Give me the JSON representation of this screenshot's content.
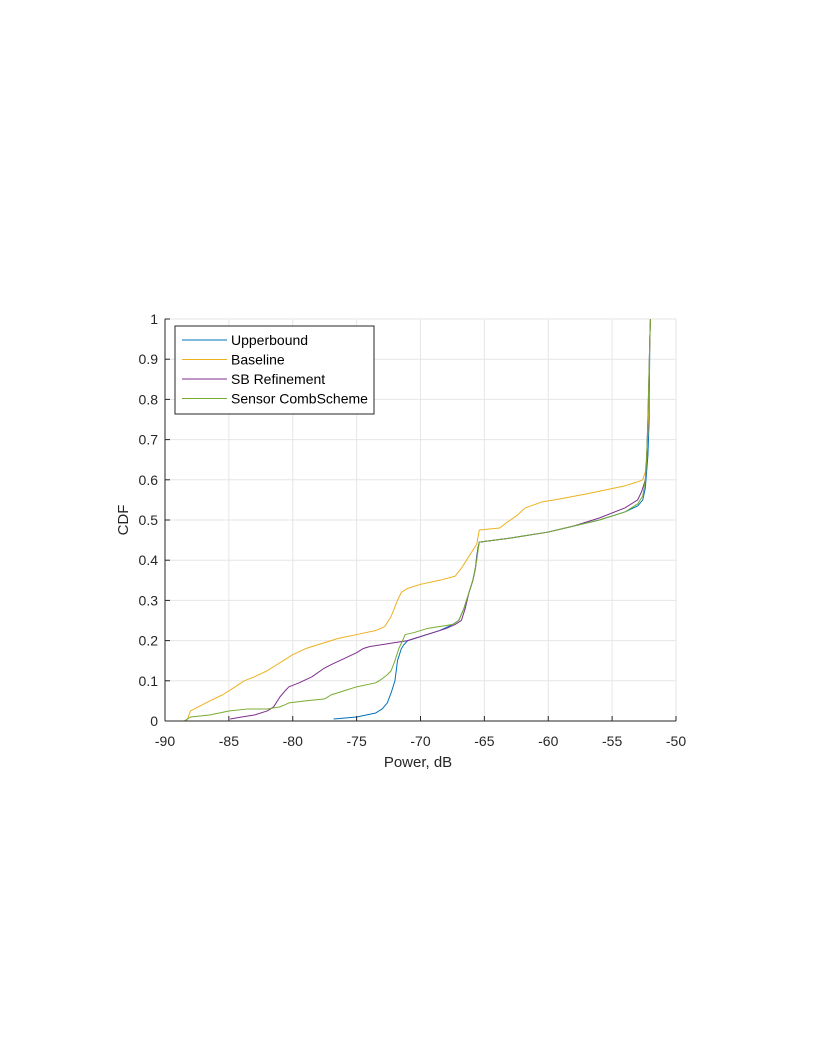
{
  "chart_data": {
    "type": "line",
    "title": "",
    "xlabel": "Power, dB",
    "ylabel": "CDF",
    "xlim": [
      -90,
      -50
    ],
    "ylim": [
      0,
      1
    ],
    "xticks": [
      -90,
      -85,
      -80,
      -75,
      -70,
      -65,
      -60,
      -55,
      -50
    ],
    "yticks": [
      0,
      0.1,
      0.2,
      0.3,
      0.4,
      0.5,
      0.6,
      0.7,
      0.8,
      0.9,
      1
    ],
    "xtick_labels": [
      "-90",
      "-85",
      "-80",
      "-75",
      "-70",
      "-65",
      "-60",
      "-55",
      "-50"
    ],
    "ytick_labels": [
      "0",
      "0.1",
      "0.2",
      "0.3",
      "0.4",
      "0.5",
      "0.6",
      "0.7",
      "0.8",
      "0.9",
      "1"
    ],
    "grid": true,
    "legend_position": "top-left",
    "series": [
      {
        "name": "Upperbound",
        "color": "#0072BD",
        "x": [
          -76.8,
          -75.0,
          -73.5,
          -73.0,
          -72.6,
          -72.3,
          -72.0,
          -71.8,
          -71.5,
          -71.3,
          -71.0,
          -70.5,
          -69.5,
          -68.5,
          -67.5,
          -67.0,
          -66.6,
          -66.2,
          -65.9,
          -65.7,
          -65.6,
          -65.5,
          -65.4,
          -63.0,
          -60.0,
          -58.0,
          -56.0,
          -54.0,
          -53.0,
          -52.6,
          -52.4,
          -52.3,
          -52.2,
          -52.1,
          -52.05,
          -52.0
        ],
        "y": [
          0.005,
          0.01,
          0.02,
          0.03,
          0.045,
          0.07,
          0.1,
          0.15,
          0.18,
          0.19,
          0.2,
          0.205,
          0.215,
          0.225,
          0.24,
          0.25,
          0.28,
          0.32,
          0.35,
          0.38,
          0.41,
          0.43,
          0.445,
          0.455,
          0.47,
          0.485,
          0.5,
          0.52,
          0.535,
          0.55,
          0.58,
          0.62,
          0.66,
          0.75,
          0.95,
          1.0
        ]
      },
      {
        "name": "Baseline",
        "color": "#EDB120",
        "x": [
          -88.3,
          -88.0,
          -86.5,
          -85.5,
          -84.5,
          -83.8,
          -83.0,
          -82.0,
          -81.0,
          -80.0,
          -79.0,
          -78.0,
          -76.5,
          -75.0,
          -73.5,
          -72.8,
          -72.3,
          -71.8,
          -71.5,
          -71.0,
          -70.0,
          -68.5,
          -67.3,
          -66.8,
          -66.2,
          -65.6,
          -65.4,
          -63.8,
          -63.2,
          -62.5,
          -61.8,
          -60.5,
          -59.5,
          -57.0,
          -55.5,
          -54.0,
          -53.0,
          -52.6,
          -52.4,
          -52.3,
          -52.15,
          -52.05,
          -52.0
        ],
        "y": [
          0.0,
          0.025,
          0.05,
          0.065,
          0.085,
          0.1,
          0.11,
          0.125,
          0.145,
          0.165,
          0.18,
          0.19,
          0.205,
          0.215,
          0.225,
          0.235,
          0.26,
          0.3,
          0.32,
          0.33,
          0.34,
          0.35,
          0.36,
          0.38,
          0.41,
          0.44,
          0.475,
          0.48,
          0.495,
          0.51,
          0.53,
          0.545,
          0.55,
          0.565,
          0.575,
          0.585,
          0.595,
          0.6,
          0.62,
          0.66,
          0.75,
          0.95,
          1.0
        ]
      },
      {
        "name": "SB Refinement",
        "color": "#7E2F8E",
        "x": [
          -84.9,
          -84.0,
          -83.0,
          -82.0,
          -81.5,
          -81.0,
          -80.6,
          -80.3,
          -79.5,
          -78.5,
          -77.6,
          -77.0,
          -76.0,
          -75.0,
          -74.5,
          -74.0,
          -73.0,
          -72.0,
          -71.0,
          -70.0,
          -69.0,
          -68.0,
          -67.3,
          -66.8,
          -66.5,
          -66.2,
          -65.9,
          -65.7,
          -65.5,
          -65.4,
          -63.0,
          -60.0,
          -58.0,
          -56.0,
          -54.0,
          -53.0,
          -52.7,
          -52.4,
          -52.3,
          -52.2,
          -52.05,
          -52.0
        ],
        "y": [
          0.005,
          0.01,
          0.015,
          0.025,
          0.035,
          0.06,
          0.075,
          0.085,
          0.095,
          0.11,
          0.13,
          0.14,
          0.155,
          0.17,
          0.18,
          0.185,
          0.19,
          0.195,
          0.2,
          0.21,
          0.22,
          0.23,
          0.24,
          0.25,
          0.28,
          0.32,
          0.35,
          0.38,
          0.43,
          0.445,
          0.455,
          0.47,
          0.485,
          0.505,
          0.53,
          0.55,
          0.57,
          0.6,
          0.65,
          0.75,
          0.95,
          1.0
        ]
      },
      {
        "name": "Sensor CombScheme",
        "color": "#77AC30",
        "x": [
          -88.5,
          -88.0,
          -86.5,
          -85.0,
          -83.5,
          -82.0,
          -81.0,
          -80.3,
          -79.0,
          -77.5,
          -77.0,
          -76.5,
          -76.0,
          -75.0,
          -73.5,
          -73.0,
          -72.6,
          -72.3,
          -72.0,
          -71.7,
          -71.4,
          -71.2,
          -70.5,
          -69.5,
          -68.5,
          -67.5,
          -67.0,
          -66.6,
          -66.2,
          -65.9,
          -65.6,
          -65.4,
          -63.0,
          -60.0,
          -58.0,
          -56.0,
          -54.0,
          -53.0,
          -52.6,
          -52.4,
          -52.3,
          -52.2,
          -52.05,
          -52.0
        ],
        "y": [
          0.0,
          0.01,
          0.015,
          0.025,
          0.03,
          0.03,
          0.035,
          0.045,
          0.05,
          0.055,
          0.065,
          0.07,
          0.075,
          0.085,
          0.095,
          0.105,
          0.115,
          0.125,
          0.15,
          0.18,
          0.2,
          0.215,
          0.22,
          0.23,
          0.235,
          0.24,
          0.25,
          0.28,
          0.32,
          0.35,
          0.4,
          0.445,
          0.455,
          0.47,
          0.485,
          0.5,
          0.52,
          0.54,
          0.56,
          0.6,
          0.65,
          0.75,
          0.95,
          1.0
        ]
      }
    ]
  }
}
